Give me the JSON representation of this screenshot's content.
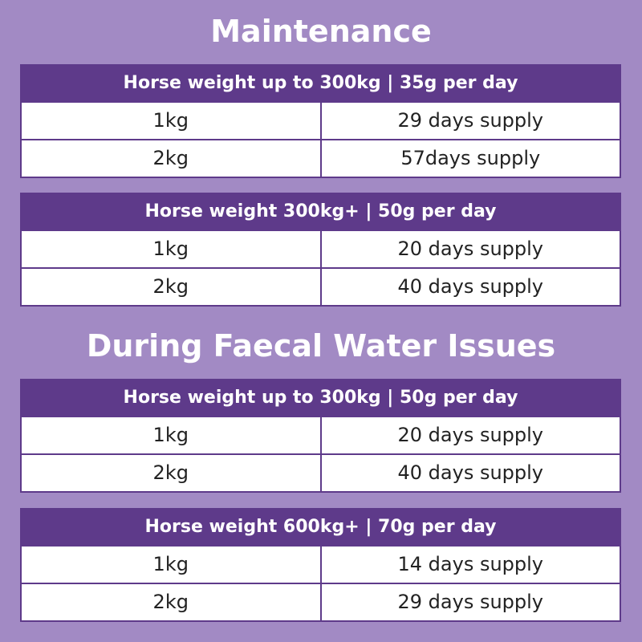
{
  "sections": [
    {
      "title": "Maintenance",
      "tables": [
        {
          "header": "Horse weight up to 300kg | 35g per day",
          "rows": [
            [
              "1kg",
              "29 days supply"
            ],
            [
              "2kg",
              "57days supply"
            ]
          ]
        },
        {
          "header": "Horse weight 300kg+ | 50g per day",
          "rows": [
            [
              "1kg",
              "20 days supply"
            ],
            [
              "2kg",
              "40 days supply"
            ]
          ]
        }
      ]
    },
    {
      "title": "During Faecal Water Issues",
      "tables": [
        {
          "header": "Horse weight up to 300kg | 50g per day",
          "rows": [
            [
              "1kg",
              "20 days supply"
            ],
            [
              "2kg",
              "40 days supply"
            ]
          ]
        },
        {
          "header": "Horse weight 600kg+ | 70g per day",
          "rows": [
            [
              "1kg",
              "14 days supply"
            ],
            [
              "2kg",
              "29 days supply"
            ]
          ]
        }
      ]
    }
  ]
}
